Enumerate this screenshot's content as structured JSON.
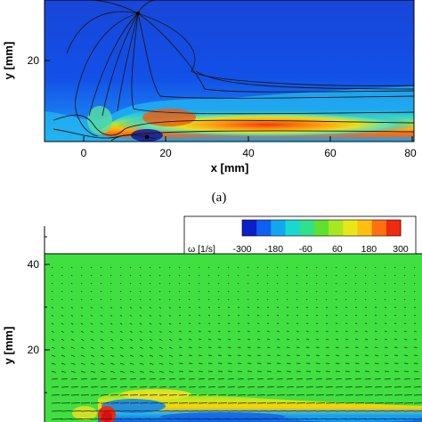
{
  "chart_data": [
    {
      "type": "heatmap",
      "panel": "(a)",
      "xlabel": "x [mm]",
      "ylabel": "y [mm]",
      "xlim": [
        -12,
        80
      ],
      "x_ticks": [
        "0",
        "20",
        "40",
        "60",
        "80"
      ],
      "y_ticks": [
        "20"
      ],
      "overlay": "streamlines",
      "colormap": [
        "#0a1aa0",
        "#1048e8",
        "#1aa0f0",
        "#30d0c8",
        "#8ee24a",
        "#f0e020",
        "#ff9a10",
        "#e02010"
      ],
      "features": [
        {
          "name": "jet-core",
          "x_range": [
            15,
            80
          ],
          "level": "high"
        },
        {
          "name": "focus-point",
          "x": 14,
          "y": 32
        }
      ]
    },
    {
      "type": "heatmap",
      "xlabel": "",
      "ylabel": "y [mm]",
      "y_ticks": [
        "20",
        "40"
      ],
      "overlay": "velocity-vectors",
      "colorbar": {
        "label": "ω [1/s]",
        "ticks": [
          "-300",
          "-180",
          "-60",
          "60",
          "180",
          "300"
        ],
        "range": [
          -300,
          300
        ],
        "colors": [
          "#0b1ec8",
          "#1060f0",
          "#12a8f0",
          "#1ad8d0",
          "#30e08a",
          "#60e030",
          "#a8e820",
          "#e8e818",
          "#ffc010",
          "#ff7010",
          "#f02a10"
        ]
      },
      "background_value": 0,
      "background_color": "#40e040"
    }
  ],
  "captions": {
    "a": "(a)"
  }
}
